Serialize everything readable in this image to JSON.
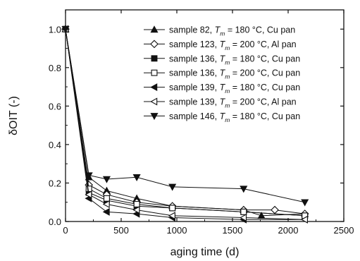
{
  "chart_data": {
    "type": "line",
    "xlabel": "aging time (d)",
    "ylabel": "δOIT (-)",
    "xlim": [
      0,
      2500
    ],
    "ylim": [
      0.0,
      1.1
    ],
    "xticks": [
      0,
      500,
      1000,
      1500,
      2000,
      2500
    ],
    "xtick_labels": [
      "0",
      "500",
      "1000",
      "1500",
      "2000",
      "2500"
    ],
    "yticks": [
      0.0,
      0.2,
      0.4,
      0.6,
      0.8,
      1.0
    ],
    "ytick_labels": [
      "0.0",
      "0.2",
      "0.4",
      "0.6",
      "0.8",
      "1.0"
    ],
    "grid": false,
    "legend_position": "top-right",
    "series": [
      {
        "name": "sample 82, T_m = 180 °C, Cu pan",
        "legend_parts": [
          "sample 82,",
          "T",
          "m",
          "= 180 °C, Cu pan"
        ],
        "marker": "triangle-up",
        "filled": true,
        "x": [
          0,
          210,
          370,
          640,
          960,
          1600,
          1760,
          2150
        ],
        "y": [
          1.0,
          0.23,
          0.16,
          0.12,
          0.08,
          0.06,
          0.03,
          0.04
        ]
      },
      {
        "name": "sample 123, T_m = 200 °C, Al pan",
        "legend_parts": [
          "sample 123,",
          "T",
          "m",
          "= 200 °C, Al pan"
        ],
        "marker": "diamond",
        "filled": false,
        "x": [
          0,
          210,
          370,
          640,
          960,
          1600,
          1880,
          2150
        ],
        "y": [
          1.0,
          0.19,
          0.14,
          0.1,
          0.08,
          0.06,
          0.06,
          0.04
        ]
      },
      {
        "name": "sample 136, T_m = 180 °C, Cu pan",
        "legend_parts": [
          "sample 136,",
          "T",
          "m",
          "= 180 °C, Cu pan"
        ],
        "marker": "square",
        "filled": true,
        "x": [
          0,
          210,
          370,
          640,
          960,
          1600,
          2150
        ],
        "y": [
          1.0,
          0.15,
          0.11,
          0.08,
          0.07,
          0.05,
          0.03
        ]
      },
      {
        "name": "sample 136, T_m = 200 °C, Cu pan",
        "legend_parts": [
          "sample 136,",
          "T",
          "m",
          "= 200 °C, Cu pan"
        ],
        "marker": "square",
        "filled": false,
        "x": [
          0,
          210,
          370,
          640,
          960,
          1600,
          2150
        ],
        "y": [
          1.0,
          0.17,
          0.12,
          0.09,
          0.07,
          0.05,
          0.03
        ]
      },
      {
        "name": "sample 139, T_m = 180 °C, Cu pan",
        "legend_parts": [
          "sample 139,",
          "T",
          "m",
          "= 180 °C, Cu pan"
        ],
        "marker": "triangle-left",
        "filled": true,
        "x": [
          0,
          210,
          370,
          640,
          960,
          1600,
          2150
        ],
        "y": [
          1.0,
          0.12,
          0.05,
          0.04,
          0.02,
          0.01,
          0.01
        ]
      },
      {
        "name": "sample 139, T_m = 200 °C, Al pan",
        "legend_parts": [
          "sample 139,",
          "T",
          "m",
          "= 200 °C, Al pan"
        ],
        "marker": "triangle-left",
        "filled": false,
        "x": [
          0,
          210,
          370,
          640,
          960,
          1600,
          2150
        ],
        "y": [
          1.0,
          0.14,
          0.09,
          0.06,
          0.03,
          0.02,
          0.01
        ]
      },
      {
        "name": "sample 146, T_m = 180 °C, Cu pan",
        "legend_parts": [
          "sample 146,",
          "T",
          "m",
          "= 180 °C, Cu pan"
        ],
        "marker": "triangle-down",
        "filled": true,
        "x": [
          0,
          210,
          370,
          640,
          960,
          1600,
          2150
        ],
        "y": [
          1.0,
          0.24,
          0.22,
          0.23,
          0.18,
          0.17,
          0.1
        ]
      }
    ]
  }
}
